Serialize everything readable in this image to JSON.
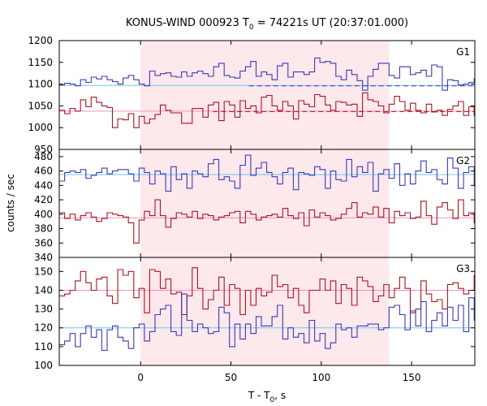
{
  "title": {
    "main": "KONUS-WIND 000923 T",
    "sub": "0",
    "rest": " = 74221s UT (20:37:01.000)"
  },
  "xlabel": {
    "main": "T - T",
    "sub": "0",
    "rest": ", s"
  },
  "ylabel": "counts / sec",
  "colors": {
    "blue_series": "#3a3ab8",
    "red_series": "#a8161c",
    "blue_level": "#6ec6f0",
    "red_level": "#f090c0",
    "highlight": "#fde8ec",
    "frame": "#000000"
  },
  "chart_data": [
    {
      "type": "line",
      "panel": "G1",
      "label": "G1",
      "xlim": [
        -45,
        185
      ],
      "ylim": [
        950,
        1200
      ],
      "yticks": [
        950,
        1000,
        1050,
        1100,
        1150,
        1200
      ],
      "ytick_labels": [
        "950",
        "1000",
        "1050",
        "1100",
        "1150",
        "1200"
      ],
      "step": 2.944,
      "highlight_x": [
        0,
        137.5
      ],
      "series": [
        {
          "color": "blue",
          "x_start": -45,
          "level": 1097,
          "dashed_level": {
            "y": 1096,
            "x": [
              60,
              185
            ]
          },
          "values": [
            1098,
            1102,
            1100,
            1096,
            1110,
            1104,
            1116,
            1112,
            1118,
            1110,
            1106,
            1100,
            1114,
            1120,
            1110,
            1100,
            1096,
            1130,
            1120,
            1124,
            1126,
            1118,
            1116,
            1128,
            1118,
            1126,
            1130,
            1124,
            1118,
            1140,
            1148,
            1120,
            1116,
            1114,
            1130,
            1140,
            1152,
            1118,
            1128,
            1122,
            1110,
            1142,
            1148,
            1116,
            1128,
            1128,
            1122,
            1128,
            1160,
            1150,
            1152,
            1148,
            1118,
            1110,
            1132,
            1122,
            1108,
            1086,
            1118,
            1134,
            1148,
            1148,
            1120,
            1114,
            1140,
            1140,
            1122,
            1126,
            1132,
            1118,
            1144,
            1140,
            1086,
            1110,
            1108,
            1098,
            1100,
            1104,
            1112,
            1108,
            1100,
            1098,
            1106,
            1120,
            1102,
            1096,
            1108,
            1094,
            1108,
            1106,
            1114,
            1110,
            1122,
            1102,
            1096,
            1100,
            1108,
            1106,
            1116,
            1112,
            1108,
            1104,
            1118,
            1112,
            1108,
            1118,
            1114,
            1100,
            1096,
            1102,
            1098,
            1100,
            1106,
            1094,
            1102,
            1108,
            1100,
            1094,
            1102,
            1100,
            1104,
            1098,
            1106,
            1100
          ]
        },
        {
          "color": "red",
          "x_start": -45,
          "level": 1038,
          "dashed_level": {
            "y": 1037,
            "x": [
              40,
              185
            ]
          },
          "values": [
            1040,
            1032,
            1044,
            1038,
            1064,
            1048,
            1070,
            1058,
            1050,
            1046,
            1000,
            1020,
            1018,
            1032,
            1000,
            1026,
            1010,
            1020,
            1030,
            1052,
            1040,
            1034,
            1034,
            1010,
            1010,
            1044,
            1044,
            1024,
            1052,
            1058,
            1016,
            1060,
            1052,
            1024,
            1062,
            1044,
            1050,
            1034,
            1070,
            1074,
            1050,
            1040,
            1060,
            1050,
            1020,
            1062,
            1054,
            1048,
            1076,
            1072,
            1052,
            1040,
            1060,
            1058,
            1052,
            1054,
            1026,
            1080,
            1064,
            1060,
            1050,
            1034,
            1054,
            1072,
            1060,
            1040,
            1056,
            1040,
            1034,
            1054,
            1036,
            1040,
            1028,
            1042,
            1050,
            1060,
            1028,
            1048,
            1028,
            1064,
            1030,
            1020,
            1040,
            1050,
            1010,
            1028,
            1002,
            1044,
            1020,
            1038,
            1042,
            1052,
            1038,
            1010,
            1030,
            1038,
            1044,
            1026,
            1050,
            1064,
            1040,
            1050,
            1046,
            1032,
            1010,
            1040,
            1034,
            1032,
            1044,
            1038,
            1030,
            1042,
            1036,
            1040,
            1028,
            1048,
            1036,
            1032,
            1034,
            1040,
            1038,
            1042,
            1036,
            1038
          ]
        }
      ]
    },
    {
      "type": "line",
      "panel": "G2",
      "label": "G2",
      "xlim": [
        -45,
        185
      ],
      "ylim": [
        340,
        490
      ],
      "yticks": [
        340,
        360,
        380,
        400,
        420,
        440,
        460,
        480
      ],
      "ytick_labels": [
        "340",
        "360",
        "380",
        "400",
        "420",
        "440",
        "460",
        "480"
      ],
      "step": 2.944,
      "highlight_x": [
        0,
        137.5
      ],
      "series": [
        {
          "color": "blue",
          "x_start": -45,
          "level": 455,
          "values": [
            446,
            458,
            460,
            458,
            462,
            450,
            454,
            458,
            464,
            456,
            460,
            462,
            462,
            456,
            446,
            464,
            458,
            442,
            460,
            456,
            432,
            466,
            448,
            456,
            436,
            460,
            456,
            452,
            470,
            476,
            448,
            452,
            446,
            436,
            468,
            482,
            454,
            464,
            472,
            458,
            452,
            442,
            458,
            464,
            434,
            458,
            456,
            454,
            466,
            462,
            436,
            460,
            448,
            446,
            476,
            452,
            466,
            458,
            472,
            432,
            456,
            462,
            450,
            470,
            440,
            456,
            442,
            460,
            474,
            458,
            462,
            448,
            442,
            478,
            464,
            436,
            458,
            466,
            440,
            438,
            470,
            440,
            454,
            450,
            476,
            450,
            464,
            434,
            440,
            456,
            448,
            452,
            460,
            430,
            476,
            480,
            462,
            454,
            470,
            458,
            450,
            438,
            456,
            452,
            460,
            448,
            466,
            470,
            450,
            448,
            464,
            458,
            462,
            452,
            468,
            456,
            440,
            458,
            472,
            468,
            456,
            460,
            448,
            466
          ]
        },
        {
          "color": "red",
          "x_start": -45,
          "level": 395,
          "values": [
            402,
            394,
            400,
            392,
            398,
            402,
            396,
            390,
            394,
            402,
            400,
            398,
            396,
            388,
            360,
            392,
            404,
            398,
            420,
            398,
            382,
            394,
            402,
            400,
            396,
            404,
            394,
            400,
            398,
            392,
            396,
            398,
            402,
            404,
            388,
            404,
            400,
            392,
            396,
            398,
            400,
            396,
            408,
            398,
            394,
            402,
            384,
            406,
            396,
            402,
            398,
            392,
            394,
            400,
            408,
            416,
            396,
            402,
            400,
            410,
            396,
            408,
            388,
            404,
            398,
            402,
            394,
            396,
            418,
            398,
            386,
            410,
            416,
            406,
            394,
            420,
            398,
            402,
            388,
            396,
            410,
            400,
            382,
            400,
            406,
            392,
            398,
            404,
            410,
            392,
            396,
            402,
            400,
            394,
            398,
            402,
            392,
            406,
            400,
            396,
            388,
            398,
            402,
            404,
            394,
            408,
            396,
            390,
            402,
            398,
            394,
            400,
            396,
            402,
            392,
            398,
            404,
            396,
            400,
            394,
            398,
            402,
            396,
            398
          ]
        }
      ]
    },
    {
      "type": "line",
      "panel": "G3",
      "label": "G3",
      "xlim": [
        -45,
        185
      ],
      "ylim": [
        100,
        157.5
      ],
      "yticks": [
        100,
        110,
        120,
        130,
        140,
        150
      ],
      "ytick_labels": [
        "100",
        "110",
        "120",
        "130",
        "140",
        "150"
      ],
      "step": 2.944,
      "highlight_x": [
        0,
        137.5
      ],
      "series": [
        {
          "color": "red",
          "x_start": -45,
          "level": 140,
          "values": [
            137,
            138,
            140,
            145,
            150,
            144,
            140,
            146,
            147,
            137,
            133,
            151,
            148,
            150,
            136,
            141,
            128,
            151,
            150,
            141,
            146,
            138,
            139,
            127,
            137,
            152,
            141,
            130,
            135,
            140,
            147,
            132,
            143,
            141,
            127,
            140,
            132,
            141,
            137,
            139,
            148,
            142,
            143,
            136,
            141,
            132,
            128,
            140,
            140,
            146,
            140,
            145,
            133,
            143,
            141,
            132,
            147,
            145,
            142,
            134,
            137,
            143,
            136,
            141,
            147,
            141,
            128,
            130,
            145,
            138,
            134,
            135,
            130,
            143,
            144,
            141,
            138,
            140,
            148,
            131,
            140,
            143,
            126,
            138,
            153,
            142,
            134,
            139,
            147,
            143,
            148,
            132,
            140,
            132,
            143,
            135,
            143,
            134,
            141,
            146,
            131,
            134,
            143,
            133,
            144,
            138,
            129,
            143,
            141,
            141,
            147,
            136,
            144,
            131,
            140,
            142,
            135,
            130,
            146,
            134,
            147,
            132,
            141,
            143
          ]
        },
        {
          "color": "blue",
          "x_start": -45,
          "level": 120,
          "values": [
            111,
            113,
            117,
            110,
            117,
            121,
            115,
            119,
            108,
            119,
            121,
            115,
            113,
            109,
            120,
            122,
            113,
            118,
            127,
            130,
            132,
            118,
            116,
            138,
            124,
            118,
            122,
            120,
            117,
            118,
            131,
            128,
            110,
            122,
            114,
            122,
            117,
            126,
            121,
            121,
            126,
            132,
            114,
            120,
            115,
            117,
            112,
            124,
            113,
            117,
            109,
            112,
            122,
            119,
            120,
            115,
            121,
            121,
            122,
            122,
            119,
            120,
            131,
            132,
            127,
            119,
            129,
            121,
            134,
            118,
            124,
            128,
            121,
            131,
            124,
            132,
            118,
            136,
            124,
            122,
            126,
            120,
            119,
            131,
            122,
            125,
            117,
            118,
            134,
            122,
            119,
            121,
            127,
            124,
            118,
            121,
            117,
            119,
            122,
            120,
            121,
            118,
            125,
            114,
            121,
            120,
            121,
            114,
            123,
            117,
            131,
            121,
            117,
            114,
            122,
            129,
            116,
            118,
            119,
            113,
            121,
            125,
            118,
            114
          ]
        }
      ]
    }
  ],
  "xaxis": {
    "ticks": [
      0,
      50,
      100,
      150
    ],
    "tick_labels": [
      "0",
      "50",
      "100",
      "150"
    ]
  }
}
